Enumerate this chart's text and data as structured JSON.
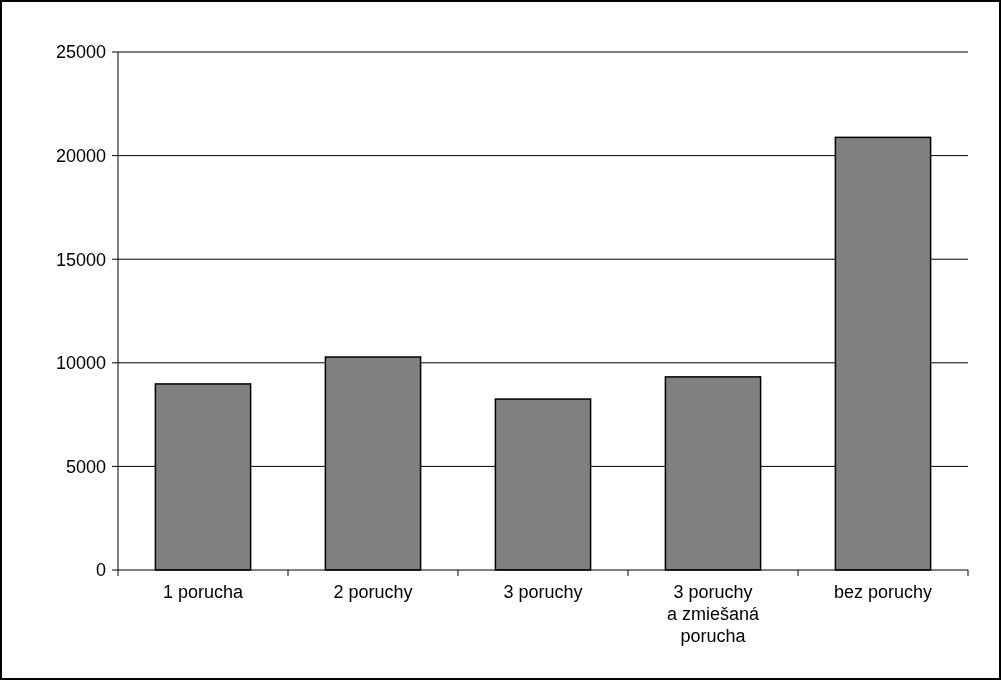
{
  "chart_data": {
    "type": "bar",
    "categories": [
      "1 porucha",
      "2 poruchy",
      "3 poruchy",
      "3 poruchy\na zmiešaná\nporucha",
      "bez poruchy"
    ],
    "values": [
      8980,
      10280,
      8250,
      9320,
      20880
    ],
    "color": "#808080",
    "ylim": [
      0,
      25000
    ],
    "yticks": [
      0,
      5000,
      10000,
      15000,
      20000,
      25000
    ],
    "grid": "y"
  }
}
